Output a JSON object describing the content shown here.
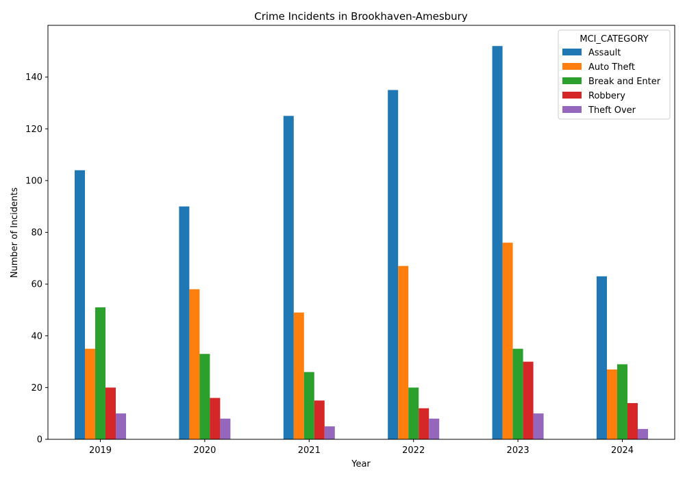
{
  "chart_data": {
    "type": "bar",
    "title": "Crime Incidents in Brookhaven-Amesbury",
    "xlabel": "Year",
    "ylabel": "Number of Incidents",
    "categories": [
      "2019",
      "2020",
      "2021",
      "2022",
      "2023",
      "2024"
    ],
    "ylim": [
      0,
      160
    ],
    "yticks": [
      0,
      20,
      40,
      60,
      80,
      100,
      120,
      140
    ],
    "legend": {
      "title": "MCI_CATEGORY",
      "position": "top-right"
    },
    "grid": false,
    "series": [
      {
        "name": "Assault",
        "color": "#1f77b4",
        "values": [
          104,
          90,
          125,
          135,
          152,
          63
        ]
      },
      {
        "name": "Auto Theft",
        "color": "#ff7f0e",
        "values": [
          35,
          58,
          49,
          67,
          76,
          27
        ]
      },
      {
        "name": "Break and Enter",
        "color": "#2ca02c",
        "values": [
          51,
          33,
          26,
          20,
          35,
          29
        ]
      },
      {
        "name": "Robbery",
        "color": "#d62728",
        "values": [
          20,
          16,
          15,
          12,
          30,
          14
        ]
      },
      {
        "name": "Theft Over",
        "color": "#9467bd",
        "values": [
          10,
          8,
          5,
          8,
          10,
          4
        ]
      }
    ]
  }
}
